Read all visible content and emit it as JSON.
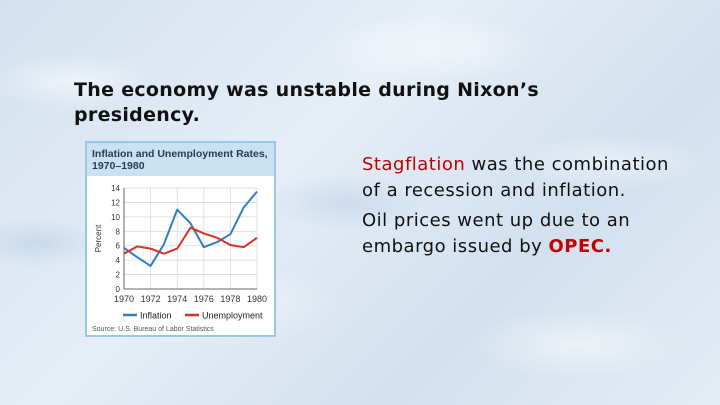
{
  "slide": {
    "title": "The economy was unstable during Nixon’s presidency.",
    "bullet1": {
      "term": "Stagflation",
      "rest": " was the combination of a recession and inflation."
    },
    "bullet2": {
      "text": "Oil prices went up due to an embargo issued by ",
      "term": "OPEC."
    },
    "accent_color": "#c00000"
  },
  "chart_data": {
    "type": "line",
    "title": "Inflation and Unemployment Rates, 1970–1980",
    "ylabel": "Percent",
    "xlabel": "",
    "ylim": [
      0,
      14
    ],
    "yticks": [
      "0",
      "2",
      "4",
      "6",
      "8",
      "10",
      "12",
      "14"
    ],
    "xlim": [
      1970,
      1980
    ],
    "xticks": [
      "1970",
      "1972",
      "1974",
      "1976",
      "1978",
      "1980"
    ],
    "grid": true,
    "legend_position": "bottom",
    "source": "Source: U.S. Bureau of Labor Statistics",
    "series": [
      {
        "name": "Inflation",
        "color": "#2f7fc1",
        "x": [
          1970,
          1971,
          1972,
          1973,
          1974,
          1975,
          1976,
          1977,
          1978,
          1979,
          1980
        ],
        "values": [
          5.7,
          4.4,
          3.2,
          6.2,
          11.0,
          9.1,
          5.8,
          6.5,
          7.6,
          11.3,
          13.5
        ]
      },
      {
        "name": "Unemployment",
        "color": "#d9312a",
        "x": [
          1970,
          1971,
          1972,
          1973,
          1974,
          1975,
          1976,
          1977,
          1978,
          1979,
          1980
        ],
        "values": [
          4.9,
          5.9,
          5.6,
          4.9,
          5.6,
          8.5,
          7.7,
          7.1,
          6.1,
          5.8,
          7.1
        ]
      }
    ]
  }
}
